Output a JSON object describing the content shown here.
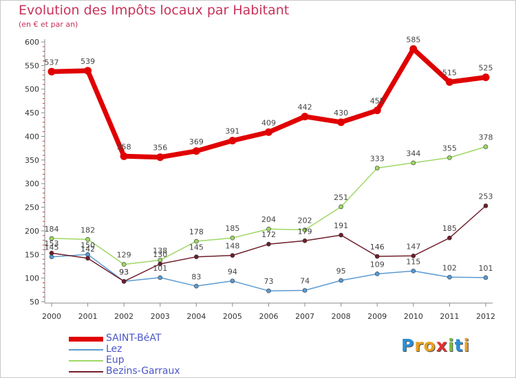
{
  "title": "Evolution des Impôts locaux par Habitant",
  "subtitle": "(en € et par an)",
  "brand": {
    "logo_letters": [
      {
        "ch": "P",
        "color": "#2a8fd6"
      },
      {
        "ch": "r",
        "color": "#e8a020"
      },
      {
        "ch": "o",
        "color": "#e8a020"
      },
      {
        "ch": "x",
        "color": "#e03030"
      },
      {
        "ch": "i",
        "color": "#7ac040"
      },
      {
        "ch": "t",
        "color": "#2a8fd6"
      },
      {
        "ch": "i",
        "color": "#e8a020"
      }
    ]
  },
  "chart_data": {
    "type": "line",
    "title": "Evolution des Impôts locaux par Habitant",
    "subtitle": "(en € et par an)",
    "x": [
      "2000",
      "2001",
      "2002",
      "2003",
      "2004",
      "2005",
      "2006",
      "2007",
      "2008",
      "2009",
      "2010",
      "2011",
      "2012"
    ],
    "yticks": [
      50,
      100,
      150,
      200,
      250,
      300,
      350,
      400,
      450,
      500,
      550,
      600
    ],
    "ylim": [
      50,
      600
    ],
    "grid": false,
    "legend_position": "bottom-left",
    "series": [
      {
        "name": "SAINT-BéAT",
        "color": "#e00000",
        "width": 7,
        "values": [
          537,
          539,
          358,
          356,
          369,
          391,
          409,
          442,
          430,
          455,
          585,
          515,
          525
        ]
      },
      {
        "name": "Lez",
        "color": "#5a9ad2",
        "width": 1.5,
        "values": [
          145,
          150,
          93,
          101,
          83,
          94,
          73,
          74,
          95,
          109,
          115,
          102,
          101
        ]
      },
      {
        "name": "Eup",
        "color": "#9ed864",
        "width": 1.5,
        "values": [
          184,
          182,
          129,
          138,
          178,
          185,
          204,
          202,
          251,
          333,
          344,
          355,
          378
        ]
      },
      {
        "name": "Bezins-Garraux",
        "color": "#6e1e2a",
        "width": 1.5,
        "values": [
          153,
          142,
          93,
          130,
          145,
          148,
          172,
          179,
          191,
          146,
          147,
          185,
          253
        ]
      }
    ]
  }
}
